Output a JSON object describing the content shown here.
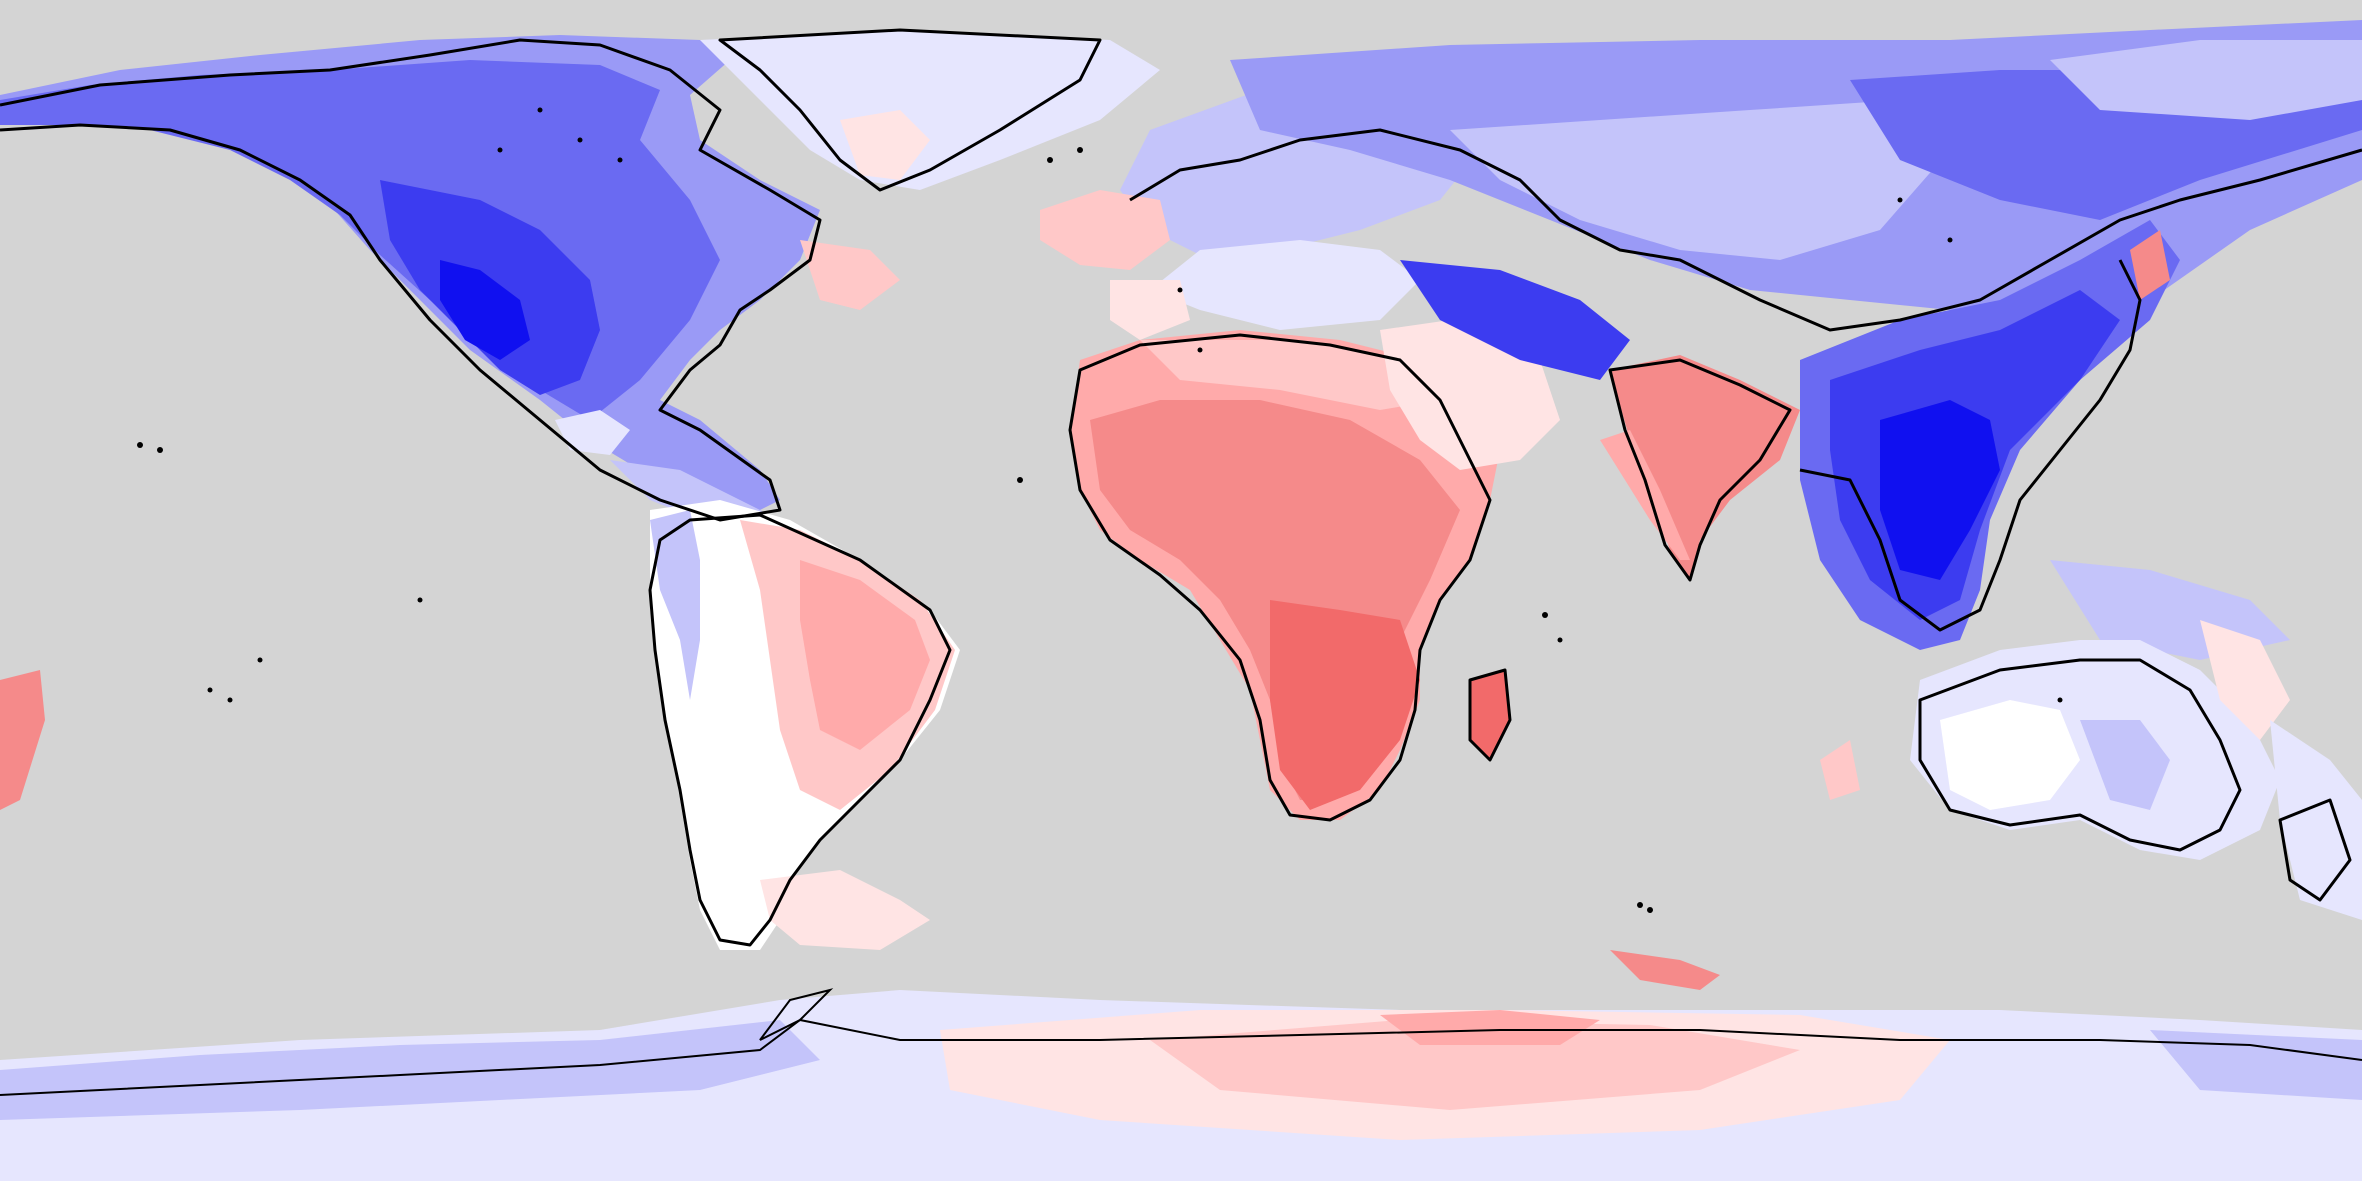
{
  "map": {
    "type": "choropleth-anomaly",
    "projection": "equirectangular",
    "extent": {
      "lon": [
        -180,
        180
      ],
      "lat": [
        -90,
        90
      ]
    },
    "legend": null,
    "ocean_color": "#d4d4d4",
    "coastline_color": "#000000",
    "palette": {
      "blue_5": "#1010f0",
      "blue_4": "#3c3cf0",
      "blue_3": "#6a6af2",
      "blue_2": "#9a9af6",
      "blue_1": "#c4c4fa",
      "blue_0": "#e6e6fe",
      "neutral": "#ffffff",
      "red_0": "#ffe4e4",
      "red_1": "#ffc8c8",
      "red_2": "#ffaaaa",
      "red_3": "#f58a8a",
      "red_4": "#f26a6a"
    },
    "regions": [
      {
        "name": "north-america",
        "sign": "negative",
        "peak_level": 5
      },
      {
        "name": "greenland",
        "sign": "near-zero",
        "peak_level": 0
      },
      {
        "name": "south-america",
        "sign": "mixed",
        "peak_level": 2
      },
      {
        "name": "europe",
        "sign": "near-zero",
        "peak_level": 1
      },
      {
        "name": "africa",
        "sign": "positive",
        "peak_level": 4
      },
      {
        "name": "middle-east",
        "sign": "positive",
        "peak_level": 1
      },
      {
        "name": "india",
        "sign": "positive",
        "peak_level": 3
      },
      {
        "name": "northern-asia",
        "sign": "negative",
        "peak_level": 3
      },
      {
        "name": "east-and-southeast-asia",
        "sign": "negative",
        "peak_level": 5
      },
      {
        "name": "australia",
        "sign": "negative",
        "peak_level": 1
      },
      {
        "name": "antarctica",
        "sign": "mixed",
        "peak_level": 2
      }
    ]
  }
}
